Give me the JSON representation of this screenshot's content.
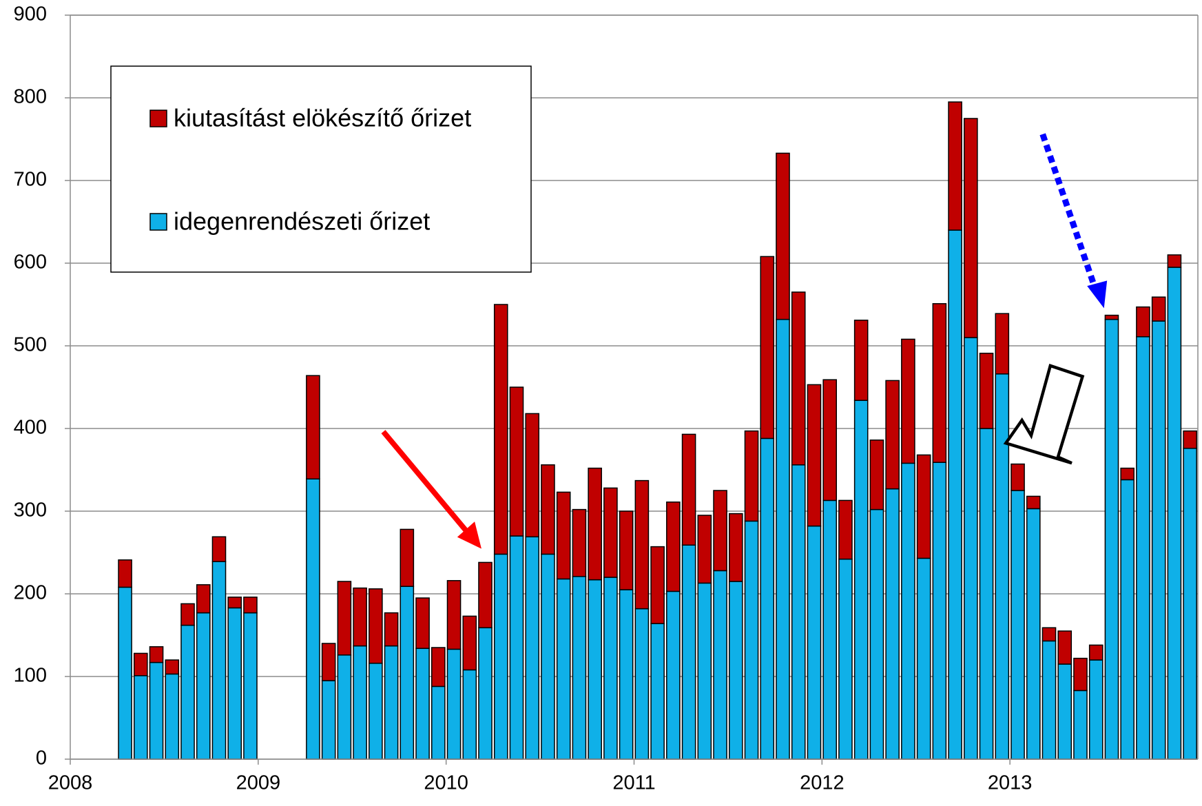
{
  "chart_data": {
    "type": "stacked_bar",
    "categories": [
      null,
      null,
      null,
      null,
      null,
      null,
      null,
      null,
      null,
      null,
      null,
      null,
      null,
      null,
      null,
      null,
      null,
      null,
      null,
      null,
      null,
      null,
      null,
      null,
      null,
      null,
      null,
      null,
      null,
      null,
      null,
      null,
      null,
      null,
      null,
      null,
      null,
      null,
      null,
      null,
      null,
      null,
      null,
      null,
      null,
      null,
      null,
      null,
      null,
      null,
      null,
      null,
      null,
      null,
      null,
      null,
      null,
      null,
      null,
      null,
      null,
      null,
      null,
      null,
      null,
      null,
      null,
      null,
      null,
      null,
      null,
      null
    ],
    "series": [
      {
        "name": "idegenrendészeti őrizet",
        "color": "#0fb0e8",
        "values": [
          null,
          null,
          null,
          208,
          101,
          117,
          103,
          162,
          177,
          239,
          183,
          177,
          null,
          null,
          null,
          339,
          95,
          126,
          137,
          116,
          137,
          209,
          134,
          88,
          133,
          108,
          159,
          248,
          270,
          269,
          248,
          218,
          221,
          217,
          220,
          205,
          182,
          164,
          203,
          259,
          213,
          228,
          215,
          288,
          388,
          532,
          356,
          282,
          313,
          242,
          434,
          302,
          327,
          358,
          243,
          359,
          640,
          510,
          400,
          466,
          325,
          303,
          143,
          115,
          83,
          120,
          532,
          338,
          511,
          530,
          595,
          376
        ]
      },
      {
        "name": "kiutasítást elökészítő őrizet",
        "color": "#c00000",
        "values": [
          null,
          null,
          null,
          33,
          27,
          19,
          17,
          26,
          34,
          30,
          13,
          19,
          null,
          null,
          null,
          125,
          45,
          89,
          70,
          90,
          40,
          69,
          61,
          47,
          83,
          65,
          79,
          302,
          180,
          149,
          108,
          105,
          81,
          135,
          108,
          95,
          155,
          93,
          108,
          134,
          82,
          97,
          82,
          109,
          220,
          201,
          209,
          171,
          146,
          71,
          97,
          84,
          131,
          150,
          125,
          192,
          155,
          265,
          91,
          73,
          32,
          15,
          16,
          40,
          39,
          18,
          5,
          14,
          36,
          29,
          15,
          21
        ]
      }
    ],
    "xlim": [
      2008,
      2014
    ],
    "xticks": [
      2008,
      2009,
      2010,
      2011,
      2012,
      2013
    ],
    "ylim": [
      0,
      900
    ],
    "yticks": [
      0,
      100,
      200,
      300,
      400,
      500,
      600,
      700,
      800,
      900
    ],
    "grid": true
  }
}
